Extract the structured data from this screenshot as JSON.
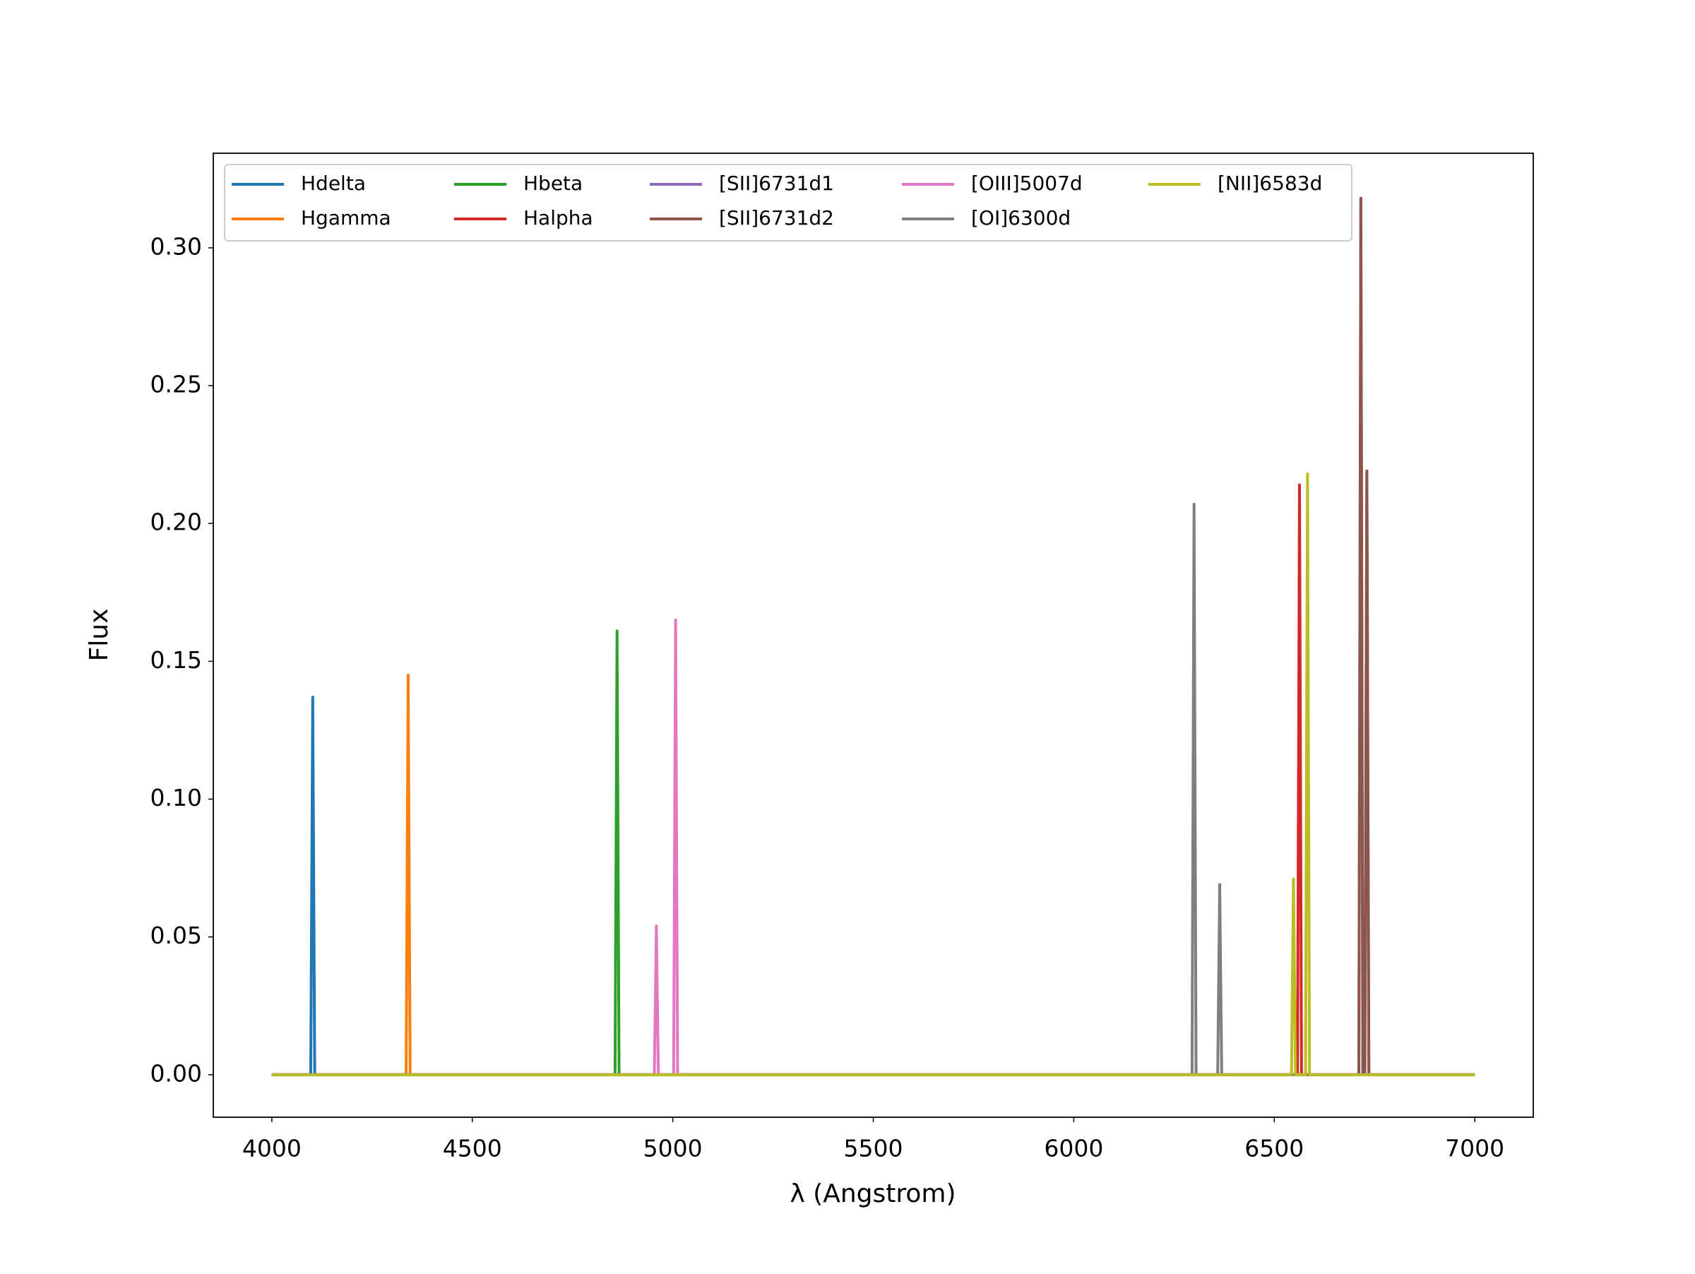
{
  "chart_data": {
    "type": "line",
    "xlabel": "λ (Angstrom)",
    "ylabel": "Flux",
    "xlim": [
      3854,
      7146
    ],
    "ylim": [
      -0.0154,
      0.3343
    ],
    "xticks": [
      4000,
      4500,
      5000,
      5500,
      6000,
      6500,
      7000
    ],
    "yticks": [
      {
        "value": 0,
        "label": "0.00"
      },
      0.05,
      {
        "value": 0.1,
        "label": "0.10"
      },
      0.15,
      {
        "value": 0.2,
        "label": "0.20"
      },
      0.25,
      {
        "value": 0.3,
        "label": "0.30"
      }
    ],
    "legend": "upper left",
    "legend_columns": 5,
    "grid": false,
    "series": [
      {
        "name": "Hdelta",
        "color": "#1f77b4",
        "x": [
          4000,
          4097,
          4102,
          4107,
          7000
        ],
        "values": [
          0,
          0,
          0.137,
          0,
          0
        ]
      },
      {
        "name": "Hgamma",
        "color": "#ff7f0e",
        "x": [
          4000,
          4335,
          4340,
          4345,
          7000
        ],
        "values": [
          0,
          0,
          0.145,
          0,
          0
        ]
      },
      {
        "name": "Hbeta",
        "color": "#2ca02c",
        "x": [
          4000,
          4856,
          4861,
          4866,
          7000
        ],
        "values": [
          0,
          0,
          0.161,
          0,
          0
        ]
      },
      {
        "name": "Halpha",
        "color": "#d62728",
        "x": [
          4000,
          6558,
          6563,
          6568,
          7000
        ],
        "values": [
          0,
          0,
          0.214,
          0,
          0
        ]
      },
      {
        "name": "[SII]6731d1",
        "color": "#9467bd",
        "x": [
          4000,
          6711,
          6716,
          6721,
          6726,
          6731,
          6736,
          7000
        ],
        "values": [
          0,
          0,
          0.318,
          0,
          0,
          0.219,
          0,
          0
        ]
      },
      {
        "name": "[SII]6731d2",
        "color": "#8c564b",
        "x": [
          4000,
          6711,
          6716,
          6721,
          6726,
          6731,
          6736,
          7000
        ],
        "values": [
          0,
          0,
          0.318,
          0,
          0,
          0.219,
          0,
          0
        ]
      },
      {
        "name": "[OIII]5007d",
        "color": "#e377c2",
        "x": [
          4000,
          4954,
          4959,
          4964,
          5002,
          5007,
          5012,
          7000
        ],
        "values": [
          0,
          0,
          0.054,
          0,
          0,
          0.165,
          0,
          0
        ]
      },
      {
        "name": "[OI]6300d",
        "color": "#7f7f7f",
        "x": [
          4000,
          6295,
          6300,
          6305,
          6359,
          6364,
          6369,
          7000
        ],
        "values": [
          0,
          0,
          0.207,
          0,
          0,
          0.069,
          0,
          0
        ]
      },
      {
        "name": "[NII]6583d",
        "color": "#bcbd22",
        "x": [
          4000,
          6543,
          6548,
          6553,
          6578,
          6583,
          6588,
          7000
        ],
        "values": [
          0,
          0,
          0.071,
          0,
          0,
          0.218,
          0,
          0
        ]
      }
    ]
  }
}
